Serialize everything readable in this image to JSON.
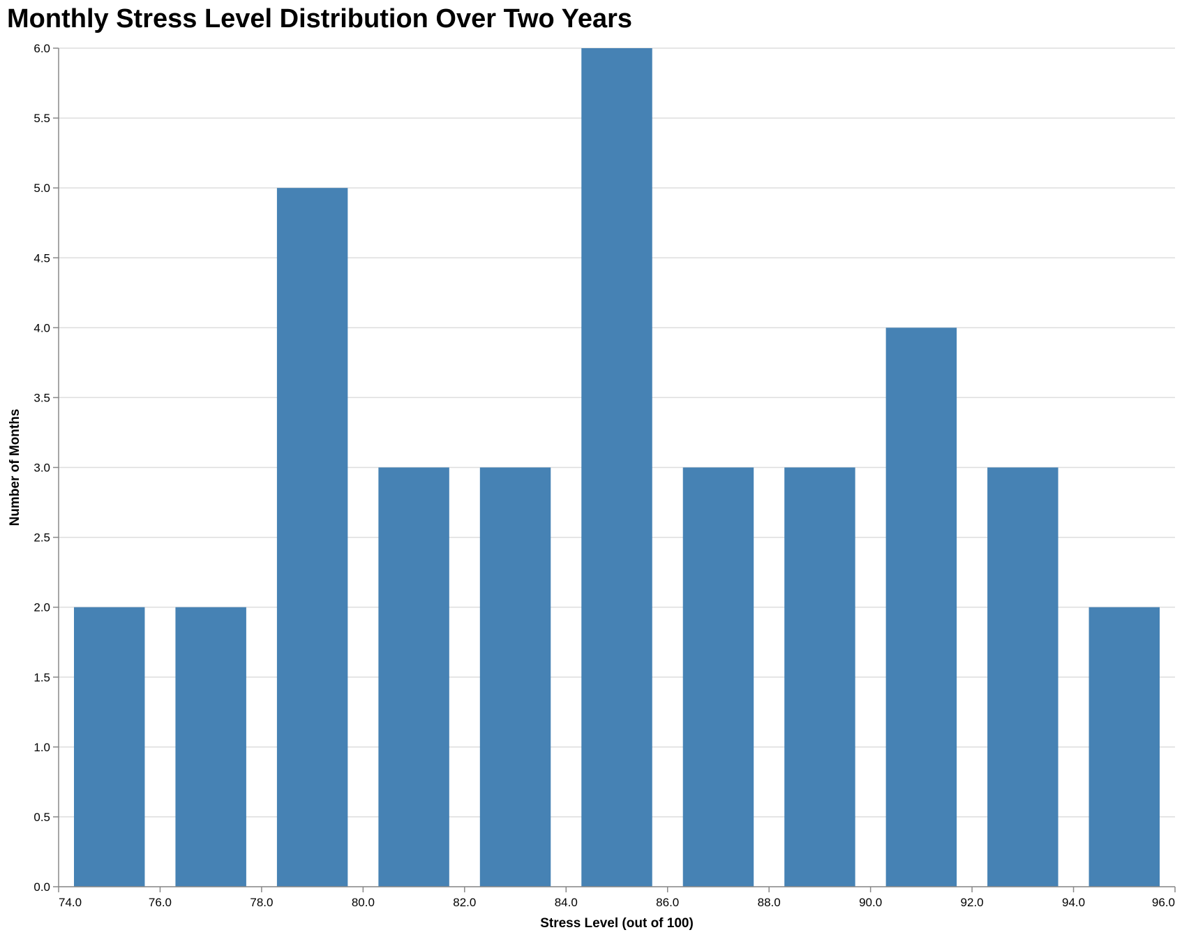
{
  "chart_data": {
    "type": "bar",
    "title": "Monthly Stress Level Distribution Over Two Years",
    "xlabel": "Stress Level (out of 100)",
    "ylabel": "Number of Months",
    "bar_color": "#4682b4",
    "grid": true,
    "xlim": [
      74,
      96
    ],
    "ylim": [
      0,
      6
    ],
    "bins": [
      {
        "bin_start": 74,
        "bin_end": 76,
        "count": 2
      },
      {
        "bin_start": 76,
        "bin_end": 78,
        "count": 2
      },
      {
        "bin_start": 78,
        "bin_end": 80,
        "count": 5
      },
      {
        "bin_start": 80,
        "bin_end": 82,
        "count": 3
      },
      {
        "bin_start": 82,
        "bin_end": 84,
        "count": 3
      },
      {
        "bin_start": 84,
        "bin_end": 86,
        "count": 6
      },
      {
        "bin_start": 86,
        "bin_end": 88,
        "count": 3
      },
      {
        "bin_start": 88,
        "bin_end": 90,
        "count": 3
      },
      {
        "bin_start": 90,
        "bin_end": 92,
        "count": 4
      },
      {
        "bin_start": 92,
        "bin_end": 94,
        "count": 3
      },
      {
        "bin_start": 94,
        "bin_end": 96,
        "count": 2
      }
    ],
    "x_ticks": [
      "74.0",
      "76.0",
      "78.0",
      "80.0",
      "82.0",
      "84.0",
      "86.0",
      "88.0",
      "90.0",
      "92.0",
      "94.0",
      "96.0"
    ],
    "y_ticks": [
      "0.0",
      "0.5",
      "1.0",
      "1.5",
      "2.0",
      "2.5",
      "3.0",
      "3.5",
      "4.0",
      "4.5",
      "5.0",
      "5.5",
      "6.0"
    ]
  }
}
